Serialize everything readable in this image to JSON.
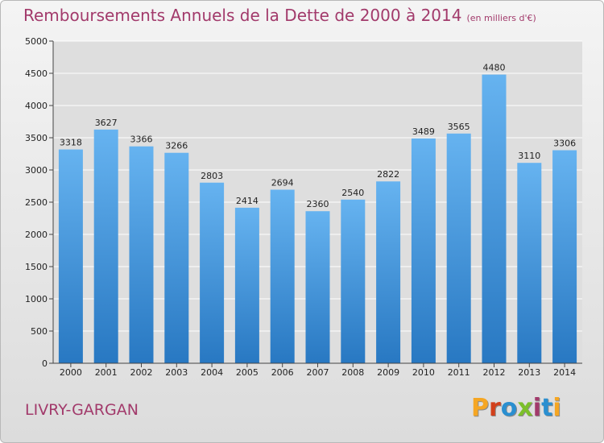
{
  "header": {
    "title": "Remboursements Annuels de la Dette de 2000 à 2014",
    "subtitle": "(en milliers d'€)"
  },
  "footer": {
    "city": "LIVRY-GARGAN",
    "logo_text": "Proxiti",
    "logo_colors": [
      "#f5a623",
      "#d2401b",
      "#2a8fd0",
      "#7cbf2a",
      "#a23a6b",
      "#2a8fd0",
      "#f5a623"
    ]
  },
  "chart_data": {
    "type": "bar",
    "categories": [
      "2000",
      "2001",
      "2002",
      "2003",
      "2004",
      "2005",
      "2006",
      "2007",
      "2008",
      "2009",
      "2010",
      "2011",
      "2012",
      "2013",
      "2014"
    ],
    "values": [
      3318,
      3627,
      3366,
      3266,
      2803,
      2414,
      2694,
      2360,
      2540,
      2822,
      3489,
      3565,
      4480,
      3110,
      3306
    ],
    "title": "Remboursements Annuels de la Dette de 2000 à 2014",
    "xlabel": "",
    "ylabel": "",
    "ylim": [
      0,
      5000
    ],
    "yticks": [
      0,
      500,
      1000,
      1500,
      2000,
      2500,
      3000,
      3500,
      4000,
      4500,
      5000
    ],
    "grid": true,
    "bar_color": "#3a8fd8"
  }
}
